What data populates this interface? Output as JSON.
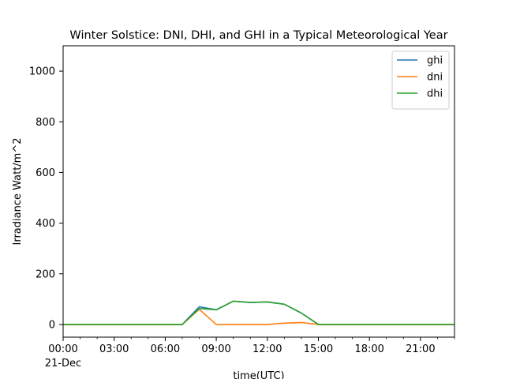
{
  "chart_data": {
    "type": "line",
    "title": "Winter Solstice: DNI, DHI, and GHI in a Typical Meteorological Year",
    "xlabel": "time(UTC)",
    "ylabel": "Irradiance Watt/m^2",
    "x_hours": [
      0,
      1,
      2,
      3,
      4,
      5,
      6,
      7,
      8,
      9,
      10,
      11,
      12,
      13,
      14,
      15,
      16,
      17,
      18,
      19,
      20,
      21,
      22,
      23
    ],
    "xlim": [
      0,
      23
    ],
    "ylim": [
      -50,
      1100
    ],
    "x_ticks": [
      {
        "hour": 0,
        "label": "00:00",
        "sublabel": "21-Dec"
      },
      {
        "hour": 3,
        "label": "03:00"
      },
      {
        "hour": 6,
        "label": "06:00"
      },
      {
        "hour": 9,
        "label": "09:00"
      },
      {
        "hour": 12,
        "label": "12:00"
      },
      {
        "hour": 15,
        "label": "15:00"
      },
      {
        "hour": 18,
        "label": "18:00"
      },
      {
        "hour": 21,
        "label": "21:00"
      }
    ],
    "y_ticks": [
      0,
      200,
      400,
      600,
      800,
      1000
    ],
    "legend_position": "top-right",
    "grid": false,
    "series": [
      {
        "name": "ghi",
        "color": "#1f77b4",
        "values": [
          0,
          0,
          0,
          0,
          0,
          0,
          0,
          0,
          70,
          58,
          92,
          87,
          89,
          80,
          45,
          0,
          0,
          0,
          0,
          0,
          0,
          0,
          0,
          0
        ]
      },
      {
        "name": "dni",
        "color": "#ff7f0e",
        "values": [
          0,
          0,
          0,
          0,
          0,
          0,
          0,
          0,
          60,
          0,
          0,
          0,
          0,
          5,
          8,
          0,
          0,
          0,
          0,
          0,
          0,
          0,
          0,
          0
        ]
      },
      {
        "name": "dhi",
        "color": "#2ca02c",
        "values": [
          0,
          0,
          0,
          0,
          0,
          0,
          0,
          0,
          63,
          58,
          92,
          87,
          89,
          80,
          45,
          0,
          0,
          0,
          0,
          0,
          0,
          0,
          0,
          0
        ]
      }
    ]
  }
}
